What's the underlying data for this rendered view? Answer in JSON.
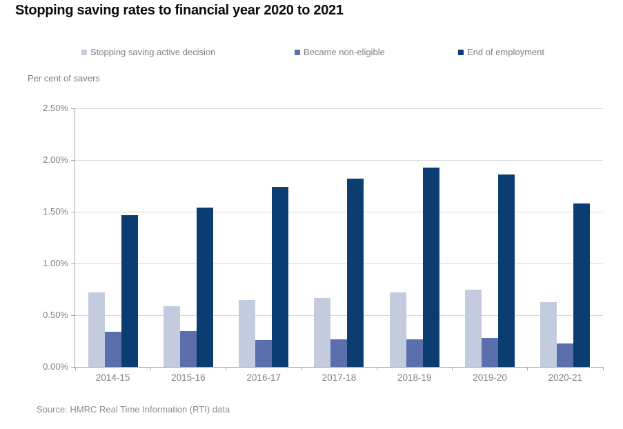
{
  "page": {
    "title": "Stopping saving rates to financial year 2020 to 2021",
    "y_axis_caption": "Per cent of savers",
    "source_note": "Source: HMRC Real Time Information (RTI) data"
  },
  "colors": {
    "title_text": "#0b0c0c",
    "muted_text": "#7f7f7f",
    "gridline": "#d9d9d9",
    "axis_line": "#a6a6a6",
    "series_active_decision": "#c3cbdf",
    "series_non_eligible": "#5a6fac",
    "series_end_employment": "#0b3d73"
  },
  "chart_data": {
    "type": "bar",
    "title": "Stopping saving rates to financial year 2020 to 2021",
    "xlabel": "",
    "ylabel": "Per cent of savers",
    "ylim": [
      0,
      2.5
    ],
    "grid": "horizontal",
    "legend_position": "top",
    "y_tick_values": [
      0,
      0.5,
      1.0,
      1.5,
      2.0,
      2.5
    ],
    "y_tick_labels": [
      "0.00%",
      "0.50%",
      "1.00%",
      "1.50%",
      "2.00%",
      "2.50%"
    ],
    "categories": [
      "2014-15",
      "2015-16",
      "2016-17",
      "2017-18",
      "2018-19",
      "2019-20",
      "2020-21"
    ],
    "series": [
      {
        "name": "Stopping saving active decision",
        "color": "#c3cbdf",
        "values": [
          0.72,
          0.59,
          0.65,
          0.67,
          0.72,
          0.75,
          0.63
        ]
      },
      {
        "name": "Became non-eligible",
        "color": "#5a6fac",
        "values": [
          0.34,
          0.35,
          0.26,
          0.27,
          0.27,
          0.28,
          0.23
        ]
      },
      {
        "name": "End of employment",
        "color": "#0b3d73",
        "values": [
          1.47,
          1.54,
          1.74,
          1.82,
          1.93,
          1.86,
          1.58
        ]
      }
    ]
  }
}
